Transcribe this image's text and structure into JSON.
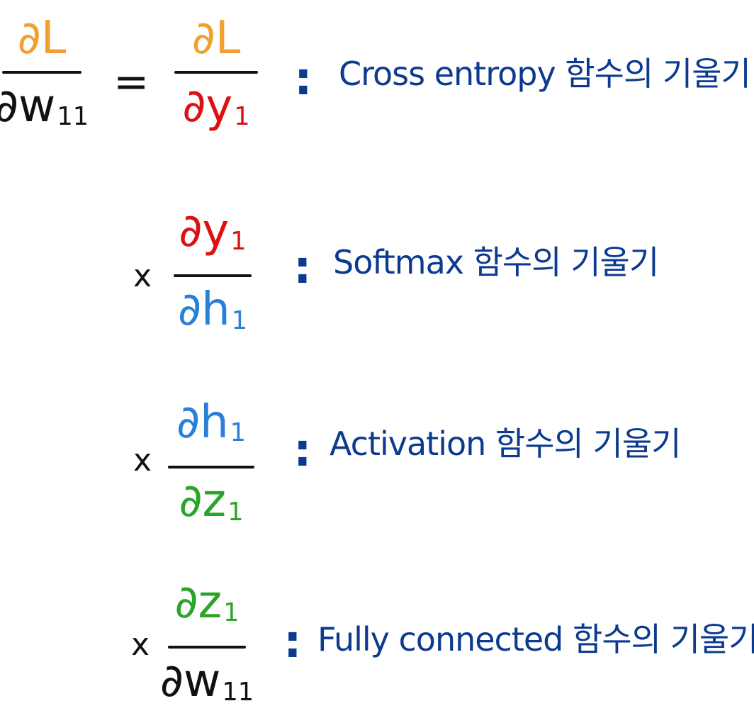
{
  "colors": {
    "L": "#f0a030",
    "y": "#dd1111",
    "h": "#2a7fd6",
    "z": "#2aa52a",
    "w": "#111111",
    "text": "#0b3a8f"
  },
  "lhs": {
    "num_sym": "∂L",
    "den_sym": "∂w",
    "den_sub": "11"
  },
  "equals": "=",
  "times": "x",
  "colon": ":",
  "rows": [
    {
      "num_sym": "∂L",
      "num_sub": "",
      "den_sym": "∂y",
      "den_sub": "1",
      "label": "Cross entropy 함수의 기울기"
    },
    {
      "num_sym": "∂y",
      "num_sub": "1",
      "den_sym": "∂h",
      "den_sub": "1",
      "label": "Softmax 함수의 기울기"
    },
    {
      "num_sym": "∂h",
      "num_sub": "1",
      "den_sym": "∂z",
      "den_sub": "1",
      "label": "Activation 함수의 기울기"
    },
    {
      "num_sym": "∂z",
      "num_sub": "1",
      "den_sym": "∂w",
      "den_sub": "11",
      "label": "Fully connected 함수의 기울기"
    }
  ]
}
